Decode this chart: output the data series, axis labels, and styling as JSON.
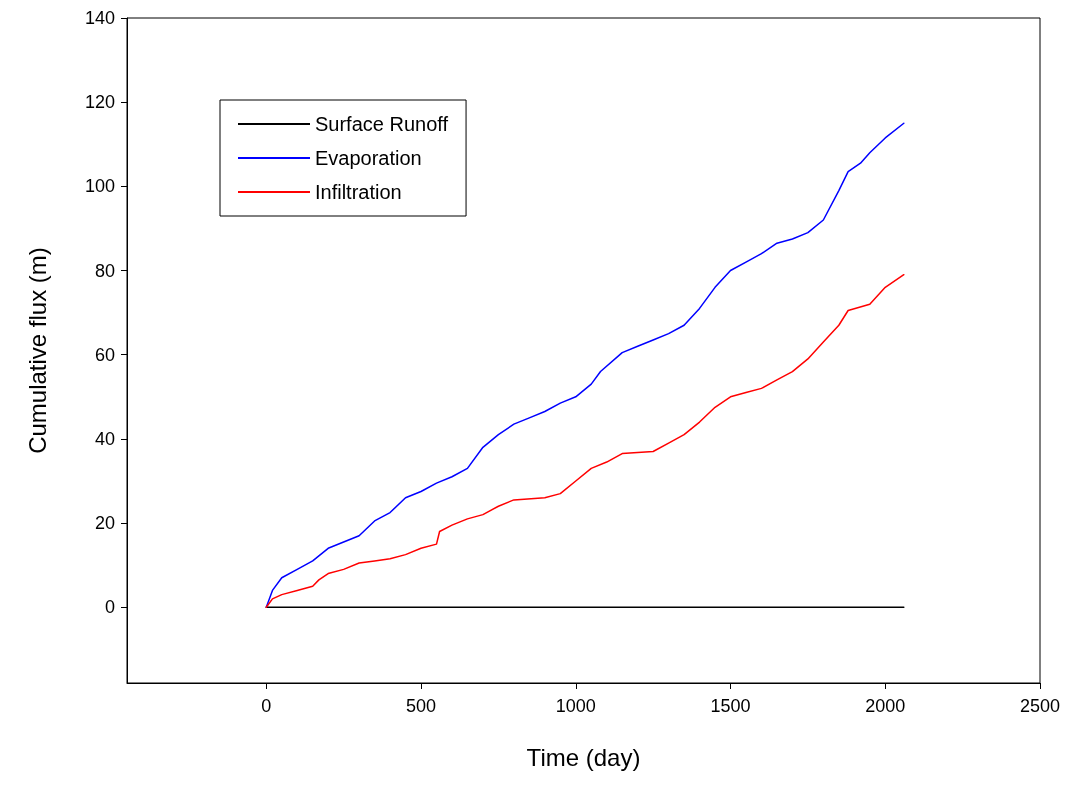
{
  "chart_data": {
    "type": "line",
    "xlabel": "Time (day)",
    "ylabel": "Cumulative flux (m)",
    "xlim": [
      -450,
      2500
    ],
    "xticks": [
      0,
      500,
      1000,
      1500,
      2000,
      2500
    ],
    "ylim": [
      -18,
      140
    ],
    "yticks": [
      0,
      20,
      40,
      60,
      80,
      100,
      120,
      140
    ],
    "grid": false,
    "legend": "top left",
    "marker": "none",
    "line_style": "solid",
    "series": [
      {
        "name": "Surface Runoff",
        "color": "#000000",
        "x": [
          0,
          2060
        ],
        "values": [
          0,
          0
        ]
      },
      {
        "name": "Evaporation",
        "color": "#0000ff",
        "x": [
          0,
          20,
          50,
          100,
          150,
          200,
          250,
          300,
          350,
          400,
          450,
          500,
          550,
          600,
          650,
          700,
          750,
          800,
          850,
          900,
          950,
          1000,
          1050,
          1080,
          1150,
          1200,
          1250,
          1300,
          1350,
          1400,
          1450,
          1500,
          1550,
          1600,
          1650,
          1700,
          1750,
          1800,
          1850,
          1880,
          1920,
          1950,
          2000,
          2060
        ],
        "values": [
          0,
          4,
          7,
          9,
          11,
          14,
          15.5,
          17,
          20.5,
          22.5,
          26,
          27.5,
          29.5,
          31,
          33,
          38,
          41,
          43.5,
          45,
          46.5,
          48.5,
          50,
          53,
          56,
          60.5,
          62,
          63.5,
          65,
          67,
          71,
          76,
          80,
          82,
          84,
          86.5,
          87.5,
          89,
          92,
          99,
          103.5,
          105.5,
          108,
          111.5,
          115
        ]
      },
      {
        "name": "Infiltration",
        "color": "#ff0000",
        "x": [
          0,
          20,
          50,
          100,
          150,
          170,
          200,
          250,
          300,
          350,
          400,
          450,
          500,
          550,
          560,
          600,
          650,
          700,
          750,
          800,
          900,
          950,
          1000,
          1050,
          1100,
          1150,
          1250,
          1300,
          1350,
          1400,
          1450,
          1500,
          1550,
          1600,
          1650,
          1700,
          1750,
          1800,
          1850,
          1880,
          1950,
          2000,
          2060
        ],
        "values": [
          0,
          2,
          3,
          4,
          5,
          6.5,
          8,
          9,
          10.5,
          11,
          11.5,
          12.5,
          14,
          15,
          18,
          19.5,
          21,
          22,
          24,
          25.5,
          26,
          27,
          30,
          33,
          34.5,
          36.5,
          37,
          39,
          41,
          44,
          47.5,
          50,
          51,
          52,
          54,
          56,
          59,
          63,
          67,
          70.5,
          72,
          76,
          79
        ]
      }
    ]
  }
}
